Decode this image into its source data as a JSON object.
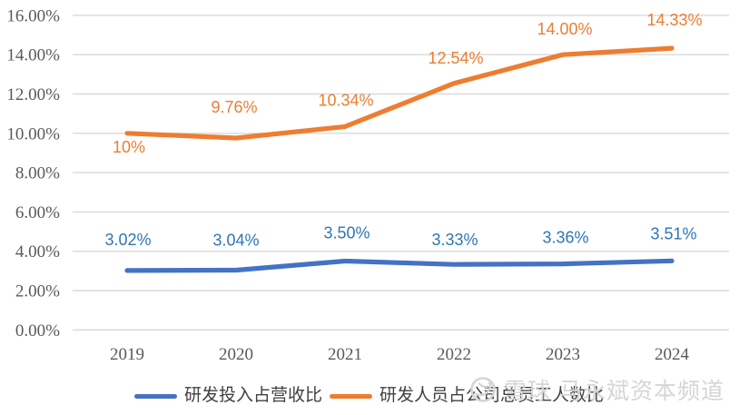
{
  "chart_data": {
    "type": "line",
    "title": "",
    "xlabel": "",
    "ylabel": "",
    "categories": [
      "2019",
      "2020",
      "2021",
      "2022",
      "2023",
      "2024"
    ],
    "series": [
      {
        "name": "研发投入占营收比",
        "color": "#4472C4",
        "label_color": "#2E75B6",
        "values": [
          3.02,
          3.04,
          3.5,
          3.33,
          3.36,
          3.51
        ],
        "labels": [
          "3.02%",
          "3.04%",
          "3.50%",
          "3.33%",
          "3.36%",
          "3.51%"
        ],
        "label_dx": [
          1,
          0,
          2,
          1,
          3,
          2
        ],
        "label_dy": [
          -28,
          -27,
          -25,
          -21,
          -23,
          -24
        ]
      },
      {
        "name": "研发人员占公司总员工人数比",
        "color": "#ED7D31",
        "label_color": "#ED7D31",
        "values": [
          10,
          9.76,
          10.34,
          12.54,
          14.0,
          14.33
        ],
        "labels": [
          "10%",
          "9.76%",
          "10.34%",
          "12.54%",
          "14.00%",
          "14.33%"
        ],
        "label_dx": [
          2,
          -2,
          1,
          2,
          2,
          3
        ],
        "label_dy": [
          21,
          -28,
          -23,
          -22,
          -22,
          -25
        ]
      }
    ],
    "ylim": [
      0,
      16
    ],
    "ytick_step": 2,
    "ytick_labels": [
      "0.00%",
      "2.00%",
      "4.00%",
      "6.00%",
      "8.00%",
      "10.00%",
      "12.00%",
      "14.00%",
      "16.00%"
    ],
    "grid": true,
    "gridline_color": "#D9D9D9",
    "axis_text_color": "#595959",
    "legend_position": "bottom"
  },
  "watermark": {
    "logo_icon": "xueqiu-snowball-logo",
    "brand": "雪球",
    "channel": "马永斌资本频道"
  }
}
